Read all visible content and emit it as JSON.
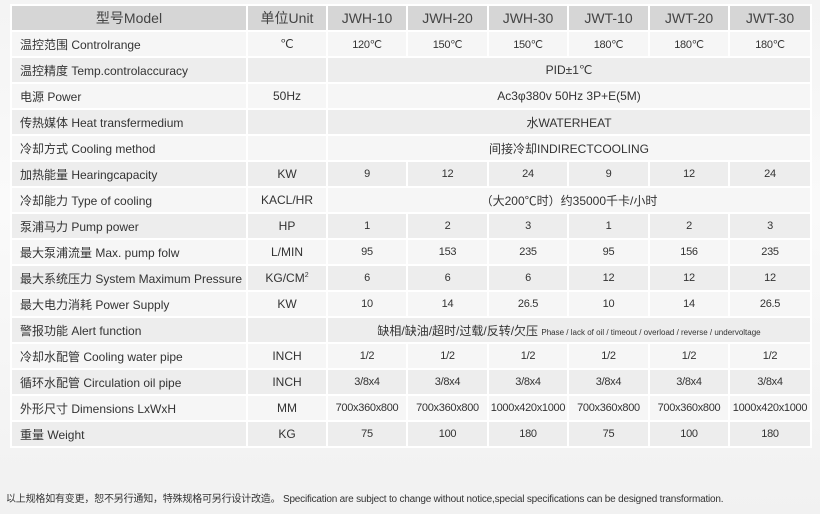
{
  "header": {
    "model": "型号Model",
    "unit": "单位Unit",
    "models": [
      "JWH-10",
      "JWH-20",
      "JWH-30",
      "JWT-10",
      "JWT-20",
      "JWT-30"
    ]
  },
  "rows": [
    {
      "label": "温控范围 Controlrange",
      "unit": "℃",
      "values": [
        "120℃",
        "150℃",
        "150℃",
        "180℃",
        "180℃",
        "180℃"
      ]
    },
    {
      "label": "温控精度 Temp.controlaccuracy",
      "unit": "",
      "span": "PID±1℃"
    },
    {
      "label": "电源 Power",
      "unit": "50Hz",
      "span": "Ac3φ380v 50Hz 3P+E(5M)"
    },
    {
      "label": "传热媒体 Heat transfermedium",
      "unit": "",
      "span": "水WATERHEAT"
    },
    {
      "label": "冷却方式 Cooling method",
      "unit": "",
      "span": "间接冷却INDIRECTCOOLING"
    },
    {
      "label": "加热能量 Hearingcapacity",
      "unit": "KW",
      "values": [
        "9",
        "12",
        "24",
        "9",
        "12",
        "24"
      ]
    },
    {
      "label": "冷却能力 Type of cooling",
      "unit": "KACL/HR",
      "span": "（大200℃时）约35000千卡/小时"
    },
    {
      "label": "泵浦马力 Pump power",
      "unit": "HP",
      "values": [
        "1",
        "2",
        "3",
        "1",
        "2",
        "3"
      ]
    },
    {
      "label": "最大泵浦流量 Max. pump folw",
      "unit": "L/MIN",
      "values": [
        "95",
        "153",
        "235",
        "95",
        "156",
        "235"
      ]
    },
    {
      "label": "最大系统压力 System Maximum Pressure",
      "unit": "KG/CM",
      "unit_sup": "2",
      "values": [
        "6",
        "6",
        "6",
        "12",
        "12",
        "12"
      ]
    },
    {
      "label": "最大电力消耗 Power Supply",
      "unit": "KW",
      "values": [
        "10",
        "14",
        "26.5",
        "10",
        "14",
        "26.5"
      ]
    },
    {
      "label": "警报功能 Alert function",
      "unit": "",
      "span": "缺相/缺油/超时/过载/反转/欠压",
      "span_small": "Phase / lack of oil / timeout / overload / reverse / undervoltage"
    },
    {
      "label": "冷却水配管 Cooling water pipe",
      "unit": "INCH",
      "values": [
        "1/2",
        "1/2",
        "1/2",
        "1/2",
        "1/2",
        "1/2"
      ]
    },
    {
      "label": "循环水配管 Circulation oil pipe",
      "unit": "INCH",
      "values": [
        "3/8x4",
        "3/8x4",
        "3/8x4",
        "3/8x4",
        "3/8x4",
        "3/8x4"
      ]
    },
    {
      "label": "外形尺寸 Dimensions LxWxH",
      "unit": "MM",
      "values": [
        "700x360x800",
        "700x360x800",
        "1000x420x1000",
        "700x360x800",
        "700x360x800",
        "1000x420x1000"
      ]
    },
    {
      "label": "重量 Weight",
      "unit": "KG",
      "values": [
        "75",
        "100",
        "180",
        "75",
        "100",
        "180"
      ]
    }
  ],
  "footer": "以上规格如有变更，恕不另行通知，特殊规格可另行设计改造。 Specification are subject to change without notice,special specifications can be designed transformation."
}
